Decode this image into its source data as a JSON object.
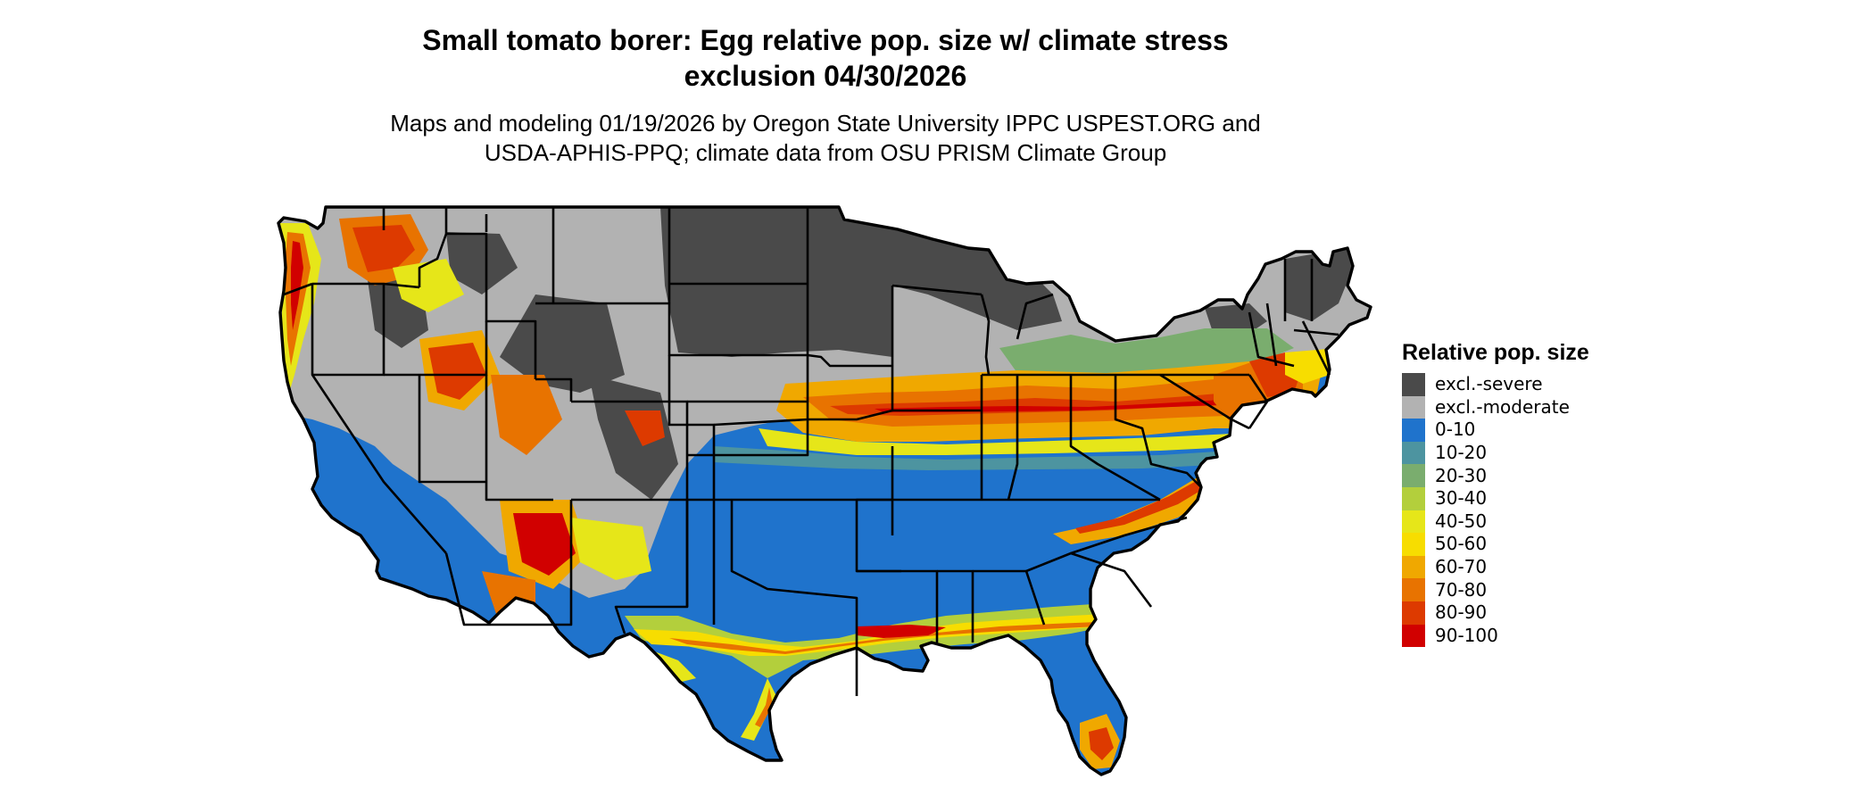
{
  "title": {
    "line1": "Small tomato borer: Egg relative pop. size w/ climate stress",
    "line2": "exclusion 04/30/2026"
  },
  "subtitle": {
    "line1": "Maps and modeling 01/19/2026 by Oregon State University IPPC USPEST.ORG and",
    "line2": "USDA-APHIS-PPQ; climate data from OSU PRISM Climate Group"
  },
  "legend": {
    "title": "Relative pop. size",
    "items": [
      {
        "label": "excl.-severe",
        "color": "#4a4a4a"
      },
      {
        "label": "excl.-moderate",
        "color": "#b2b2b2"
      },
      {
        "label": "0-10",
        "color": "#1f73cc"
      },
      {
        "label": "10-20",
        "color": "#4d94a0"
      },
      {
        "label": "20-30",
        "color": "#7aad6e"
      },
      {
        "label": "30-40",
        "color": "#b3cf3c"
      },
      {
        "label": "40-50",
        "color": "#e6e619"
      },
      {
        "label": "50-60",
        "color": "#f7dd00"
      },
      {
        "label": "60-70",
        "color": "#f0a800"
      },
      {
        "label": "70-80",
        "color": "#e87300"
      },
      {
        "label": "80-90",
        "color": "#dd3a00"
      },
      {
        "label": "90-100",
        "color": "#d10000"
      }
    ]
  }
}
